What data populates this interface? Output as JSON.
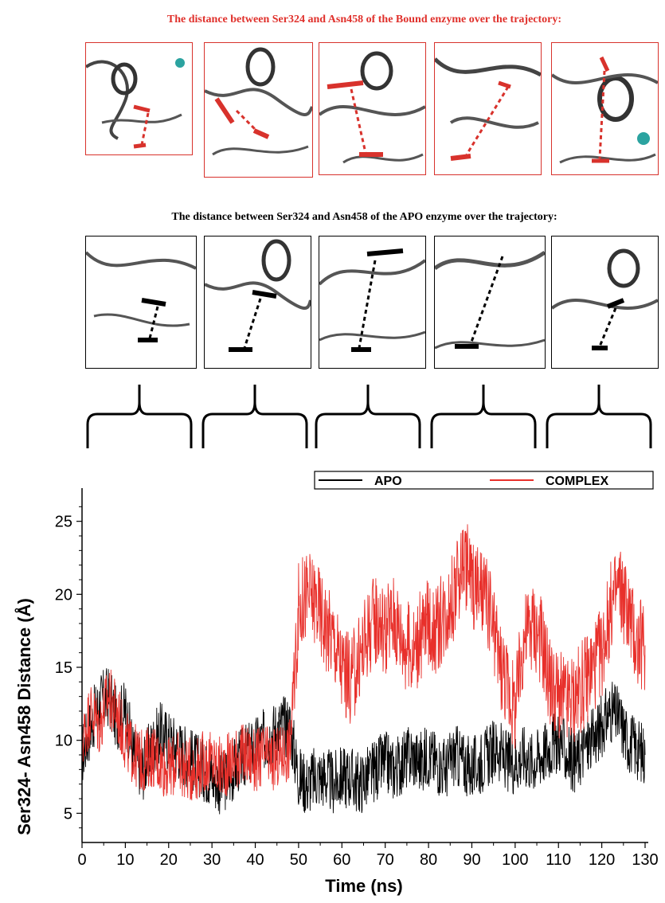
{
  "headings": {
    "bound": "The distance between Ser324 and Asn458 of the Bound enzyme over the trajectory:",
    "apo": "The distance between Ser324 and Asn458 of the APO enzyme over the trajectory:"
  },
  "colors": {
    "bound": "#e0302b",
    "apo": "#000000",
    "complex_series": "#e8302b",
    "apo_series": "#000000"
  },
  "panels": {
    "bound_count": 5,
    "apo_count": 5
  },
  "chart_data": {
    "type": "line",
    "xlabel": "Time (ns)",
    "ylabel": "Ser324- Asn458 Distance (Å)",
    "xlim": [
      0,
      130
    ],
    "ylim": [
      3,
      27
    ],
    "xticks": [
      "0",
      "10",
      "20",
      "30",
      "40",
      "50",
      "60",
      "70",
      "80",
      "90",
      "100",
      "110",
      "120",
      "130"
    ],
    "yticks": [
      "5",
      "10",
      "15",
      "20",
      "25"
    ],
    "grid": false,
    "legend_position": "top-right",
    "series": [
      {
        "name": "APO",
        "color": "#000000",
        "x": [
          0,
          2,
          4,
          6,
          8,
          10,
          12,
          14,
          16,
          18,
          20,
          22,
          24,
          26,
          28,
          30,
          32,
          34,
          36,
          38,
          40,
          42,
          44,
          46,
          48,
          50,
          52,
          54,
          56,
          58,
          60,
          62,
          64,
          66,
          68,
          70,
          72,
          74,
          76,
          78,
          80,
          82,
          84,
          86,
          88,
          90,
          92,
          94,
          96,
          98,
          100,
          102,
          104,
          106,
          108,
          110,
          112,
          114,
          116,
          118,
          120,
          122,
          124,
          126,
          128,
          130
        ],
        "y": [
          9.0,
          11.0,
          12.5,
          13.0,
          11.5,
          12.0,
          9.0,
          8.0,
          9.5,
          10.5,
          10.0,
          9.5,
          9.0,
          8.5,
          8.0,
          7.5,
          7.0,
          7.5,
          8.5,
          9.0,
          9.5,
          10.0,
          10.5,
          11.0,
          11.0,
          7.5,
          7.0,
          7.5,
          7.5,
          7.0,
          7.5,
          7.5,
          7.0,
          7.5,
          8.0,
          8.5,
          8.0,
          8.5,
          9.0,
          8.5,
          9.0,
          8.5,
          8.0,
          9.0,
          8.5,
          8.0,
          8.5,
          9.0,
          9.5,
          8.5,
          8.5,
          9.0,
          8.5,
          9.0,
          9.5,
          10.0,
          9.0,
          8.5,
          9.5,
          10.0,
          11.0,
          12.0,
          11.5,
          10.0,
          9.5,
          9.0
        ]
      },
      {
        "name": "COMPLEX",
        "color": "#e8302b",
        "x": [
          0,
          2,
          4,
          6,
          8,
          10,
          12,
          14,
          16,
          18,
          20,
          22,
          24,
          26,
          28,
          30,
          32,
          34,
          36,
          38,
          40,
          42,
          44,
          46,
          48,
          50,
          52,
          54,
          56,
          58,
          60,
          62,
          64,
          66,
          68,
          70,
          72,
          74,
          76,
          78,
          80,
          82,
          84,
          86,
          88,
          90,
          92,
          94,
          96,
          98,
          100,
          102,
          104,
          106,
          108,
          110,
          112,
          114,
          116,
          118,
          120,
          122,
          124,
          126,
          128,
          130
        ],
        "y": [
          10.0,
          12.0,
          11.0,
          13.0,
          12.0,
          10.0,
          9.0,
          8.5,
          9.0,
          8.5,
          8.0,
          8.5,
          8.0,
          8.0,
          8.5,
          8.5,
          8.0,
          8.5,
          9.0,
          9.0,
          8.5,
          9.0,
          8.5,
          9.0,
          9.5,
          19.0,
          20.0,
          19.5,
          18.0,
          17.0,
          15.0,
          14.0,
          15.5,
          17.5,
          18.5,
          17.5,
          18.5,
          17.0,
          16.0,
          17.0,
          18.0,
          17.5,
          19.0,
          20.0,
          22.5,
          21.0,
          20.0,
          19.0,
          16.0,
          14.0,
          12.0,
          17.0,
          18.0,
          17.0,
          14.0,
          13.0,
          12.5,
          13.0,
          14.0,
          15.0,
          16.0,
          19.0,
          20.5,
          19.0,
          16.5,
          16.5
        ]
      }
    ]
  }
}
